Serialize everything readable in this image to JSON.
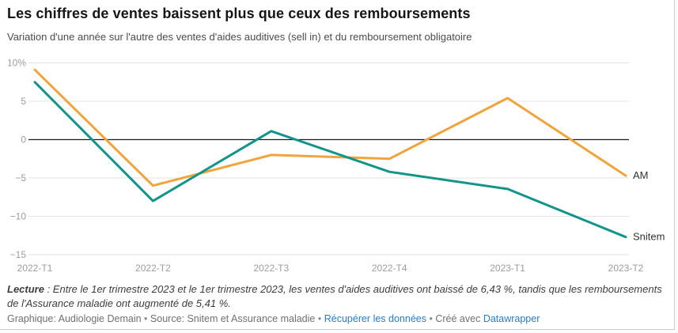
{
  "header": {
    "title": "Les chiffres de ventes baissent plus que ceux des remboursements",
    "subtitle": "Variation d'une année sur l'autre des ventes d'aides auditives (sell in) et du remboursement obligatoire"
  },
  "chart_data": {
    "type": "line",
    "title": "Les chiffres de ventes baissent plus que ceux des remboursements",
    "categories": [
      "2022-T1",
      "2022-T2",
      "2022-T3",
      "2022-T4",
      "2023-T1",
      "2023-T2"
    ],
    "series": [
      {
        "name": "AM",
        "color": "#F0A43C",
        "values": [
          9.1,
          -6.0,
          -2.0,
          -2.5,
          5.41,
          -4.7
        ]
      },
      {
        "name": "Snitem",
        "color": "#12948B",
        "values": [
          7.5,
          -8.0,
          1.1,
          -4.2,
          -6.43,
          -12.7
        ]
      }
    ],
    "ylim": [
      -15,
      10
    ],
    "yticks": [
      {
        "value": 10,
        "label": "10%"
      },
      {
        "value": 5,
        "label": "5"
      },
      {
        "value": 0,
        "label": "0"
      },
      {
        "value": -5,
        "label": "−5"
      },
      {
        "value": -10,
        "label": "−10"
      },
      {
        "value": -15,
        "label": "−15"
      }
    ],
    "grid": "horizontal",
    "zero_line_color": "#1a1a1a",
    "gridline_color": "#e3e3e3",
    "legend_position": "line-end-labels"
  },
  "footer": {
    "note_label": "Lecture",
    "note_text": " : Entre le 1er trimestre 2023 et le 1er trimestre 2023, les ventes d'aides auditives ont baissé de 6,43 %, tandis que les remboursements de l'Assurance maladie ont augmenté de 5,41 %.",
    "byline_graphique": "Graphique: Audiologie Demain",
    "separator": "•",
    "byline_source": "Source: Snitem et Assurance maladie",
    "link_data": "Récupérer les données",
    "byline_created": "Créé avec",
    "link_datawrapper": "Datawrapper"
  }
}
